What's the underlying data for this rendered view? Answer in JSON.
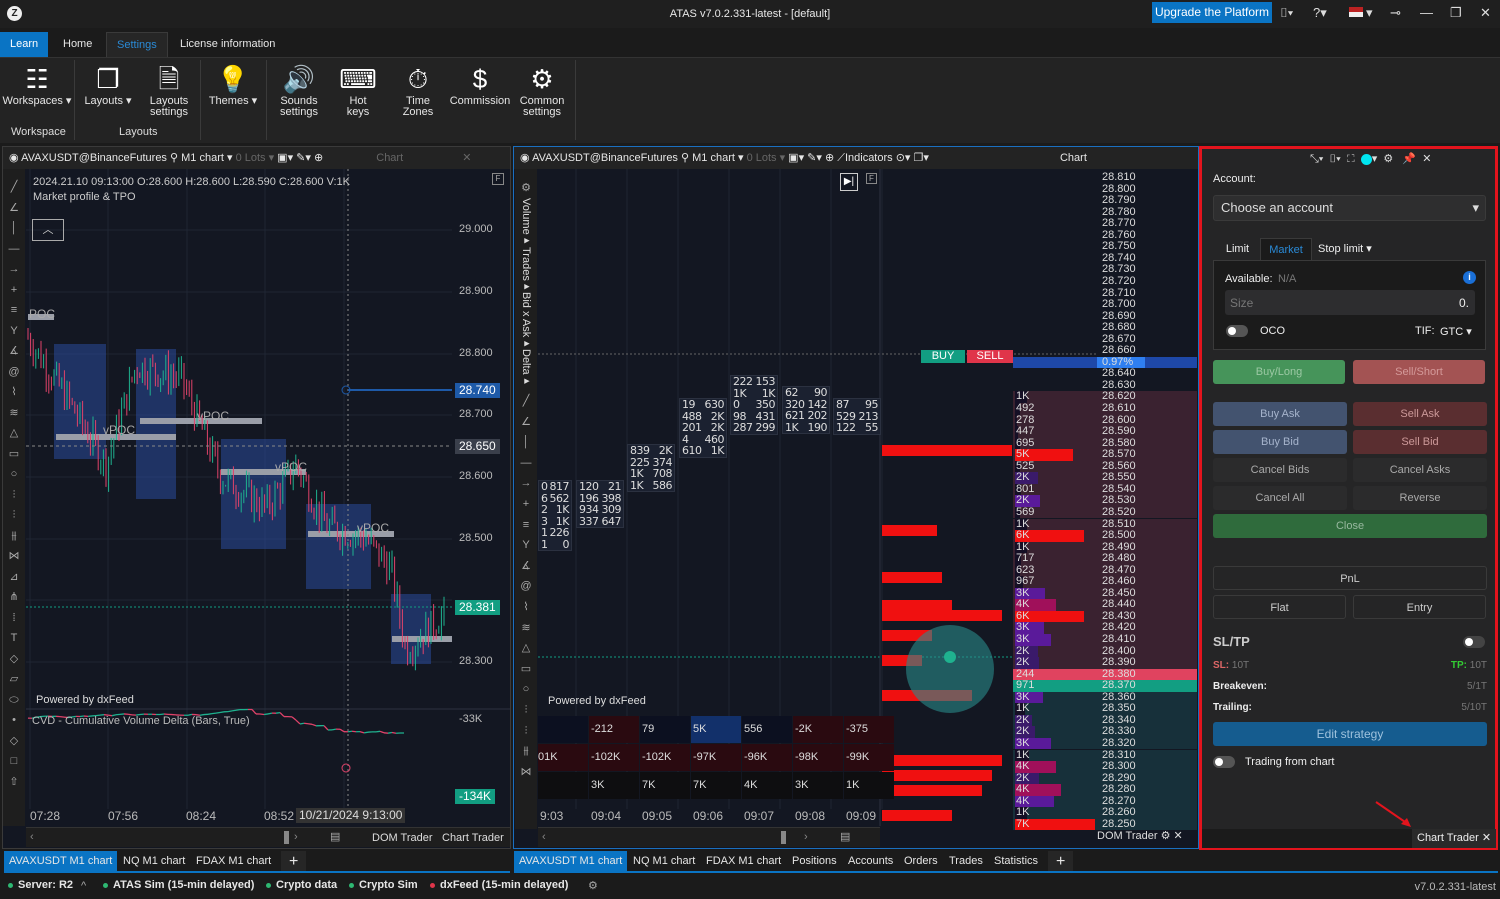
{
  "app": {
    "title": "ATAS v7.0.2.331-latest - [default]",
    "upgrade_label": "Upgrade the Platform"
  },
  "ribbon": {
    "tabs": [
      {
        "label": "Learn"
      },
      {
        "label": "Home"
      },
      {
        "label": "Settings"
      },
      {
        "label": "License information"
      }
    ],
    "buttons": [
      {
        "label": "Workspaces ▾",
        "icon": "workspaces-icon"
      },
      {
        "label": "Layouts ▾",
        "icon": "layouts-icon"
      },
      {
        "label": "Layouts settings",
        "icon": "layouts-settings-icon"
      },
      {
        "label": "Themes ▾",
        "icon": "lightbulb-icon"
      },
      {
        "label": "Sounds settings",
        "icon": "speaker-icon"
      },
      {
        "label": "Hot keys",
        "icon": "keyboard-icon"
      },
      {
        "label": "Time Zones",
        "icon": "stopwatch-icon"
      },
      {
        "label": "Commission",
        "icon": "dollar-cycle-icon"
      },
      {
        "label": "Common settings",
        "icon": "gear-icon"
      }
    ],
    "groups": [
      {
        "label": "Workspace"
      },
      {
        "label": "Layouts"
      }
    ]
  },
  "left_chart": {
    "instrument": "AVAXUSDT@BinanceFutures",
    "timeframe": "M1 chart",
    "lots": "0 Lots",
    "panel_label": "Chart",
    "ohlc": "2024.21.10 09:13:00 O:28.600 H:28.600 L:28.590 C:28.600 V:1K",
    "indicator": "Market profile & TPO",
    "poc_labels": [
      "POC",
      "vPOC",
      "vPOC",
      "vPOC",
      "vPOC",
      "vPOC"
    ],
    "price_ticks": [
      "29.000",
      "28.900",
      "28.800",
      "28.700",
      "28.600",
      "28.500",
      "28.400",
      "28.300"
    ],
    "tags": {
      "line": "28.740",
      "crosshair": "28.650",
      "last": "28.381",
      "cvd": "-134K"
    },
    "powered": "Powered by dxFeed",
    "cvd_title": "CVD - Cumulative Volume Delta (Bars, True)",
    "cvd_tick": "-33K",
    "time_ticks": [
      "07:28",
      "07:56",
      "08:24",
      "08:52"
    ],
    "crosshair_time": "10/21/2024 9:13:00",
    "dom_trader": "DOM Trader",
    "chart_trader": "Chart Trader"
  },
  "right_chart": {
    "instrument": "AVAXUSDT@BinanceFutures",
    "timeframe": "M1 chart",
    "lots": "0 Lots",
    "indicators": "Indicators",
    "panel_label": "Chart",
    "side_labels": [
      "Volume",
      "Trades",
      "Bid x Ask",
      "Delta"
    ],
    "buy": "BUY",
    "sell": "SELL",
    "powered": "Powered by dxFeed",
    "clusters": [
      [
        [
          "0",
          "817"
        ],
        [
          "6",
          "562"
        ],
        [
          "2",
          "1K"
        ],
        [
          "3",
          "1K"
        ],
        [
          "1",
          "226"
        ],
        [
          "1",
          "0"
        ]
      ],
      [
        [
          "120",
          "21"
        ],
        [
          "196",
          "398"
        ],
        [
          "934",
          "309"
        ],
        [
          "337",
          "647"
        ]
      ],
      [
        [
          "839",
          "2K"
        ],
        [
          "225",
          "374"
        ],
        [
          "1K",
          "708"
        ],
        [
          "1K",
          "586"
        ]
      ],
      [
        [
          "19",
          "630"
        ],
        [
          "488",
          "2K"
        ],
        [
          "201",
          "2K"
        ],
        [
          "4",
          "460"
        ],
        [
          "610",
          "1K"
        ]
      ],
      [
        [
          "222",
          "153"
        ],
        [
          "1K",
          "1K"
        ],
        [
          "0",
          "350"
        ],
        [
          "98",
          "431"
        ],
        [
          "287",
          "299"
        ]
      ],
      [
        [
          "62",
          "90"
        ],
        [
          "320",
          "142"
        ],
        [
          "621",
          "202"
        ],
        [
          "1K",
          "190"
        ]
      ],
      [
        [
          "87",
          "95"
        ],
        [
          "529",
          "213"
        ],
        [
          "122",
          "55"
        ]
      ]
    ],
    "stats_table": [
      [
        "",
        "-212",
        "79",
        "5K",
        "556",
        "-2K",
        "-375"
      ],
      [
        "01K",
        "-102K",
        "-102K",
        "-97K",
        "-96K",
        "-98K",
        "-99K"
      ],
      [
        "",
        "3K",
        "7K",
        "7K",
        "4K",
        "3K",
        "1K"
      ]
    ],
    "time_ticks": [
      "9:03",
      "09:04",
      "09:05",
      "09:06",
      "09:07",
      "09:08",
      "09:09"
    ],
    "ladder": [
      {
        "p": "28.810"
      },
      {
        "p": "28.800"
      },
      {
        "p": "28.790"
      },
      {
        "p": "28.780"
      },
      {
        "p": "28.770"
      },
      {
        "p": "28.760"
      },
      {
        "p": "28.750"
      },
      {
        "p": "28.740"
      },
      {
        "p": "28.730"
      },
      {
        "p": "28.720"
      },
      {
        "p": "28.710"
      },
      {
        "p": "28.700"
      },
      {
        "p": "28.690"
      },
      {
        "p": "28.680"
      },
      {
        "p": "28.670"
      },
      {
        "p": "28.660"
      },
      {
        "p": "0.97%",
        "hl": "current"
      },
      {
        "p": "28.640"
      },
      {
        "p": "28.630"
      },
      {
        "p": "28.620",
        "v": "1K",
        "k": 1
      },
      {
        "p": "28.610",
        "v": "492",
        "k": 0.4
      },
      {
        "p": "28.600",
        "v": "278",
        "k": 0.2
      },
      {
        "p": "28.590",
        "v": "447",
        "k": 0.3
      },
      {
        "p": "28.580",
        "v": "695",
        "k": 0.4
      },
      {
        "p": "28.570",
        "v": "5K",
        "k": 5
      },
      {
        "p": "28.560",
        "v": "525",
        "k": 0.4
      },
      {
        "p": "28.550",
        "v": "2K",
        "k": 2
      },
      {
        "p": "28.540",
        "v": "801",
        "k": 0.5
      },
      {
        "p": "28.530",
        "v": "2K",
        "k": 2.2
      },
      {
        "p": "28.520",
        "v": "569",
        "k": 0.4
      },
      {
        "p": "28.510",
        "v": "1K",
        "k": 1
      },
      {
        "p": "28.500",
        "v": "6K",
        "k": 6
      },
      {
        "p": "28.490",
        "v": "1K",
        "k": 1
      },
      {
        "p": "28.480",
        "v": "717",
        "k": 0.5
      },
      {
        "p": "28.470",
        "v": "623",
        "k": 0.4
      },
      {
        "p": "28.460",
        "v": "967",
        "k": 0.7
      },
      {
        "p": "28.450",
        "v": "3K",
        "k": 2.6
      },
      {
        "p": "28.440",
        "v": "4K",
        "k": 3.6
      },
      {
        "p": "28.430",
        "v": "6K",
        "k": 6
      },
      {
        "p": "28.420",
        "v": "3K",
        "k": 2.5
      },
      {
        "p": "28.410",
        "v": "3K",
        "k": 3.1
      },
      {
        "p": "28.400",
        "v": "2K",
        "k": 2
      },
      {
        "p": "28.390",
        "v": "2K",
        "k": 2.1
      },
      {
        "p": "28.380",
        "v": "244",
        "hl": "ask"
      },
      {
        "p": "28.370",
        "v": "971",
        "hl": "bid"
      },
      {
        "p": "28.360",
        "v": "3K",
        "k": 2.4
      },
      {
        "p": "28.350",
        "v": "1K",
        "k": 0.9
      },
      {
        "p": "28.340",
        "v": "2K",
        "k": 1.5
      },
      {
        "p": "28.330",
        "v": "2K",
        "k": 1.7
      },
      {
        "p": "28.320",
        "v": "3K",
        "k": 3.1
      },
      {
        "p": "28.310",
        "v": "1K",
        "k": 1.2
      },
      {
        "p": "28.300",
        "v": "4K",
        "k": 3.6
      },
      {
        "p": "28.290",
        "v": "2K",
        "k": 2.1
      },
      {
        "p": "28.280",
        "v": "4K",
        "k": 4
      },
      {
        "p": "28.270",
        "v": "4K",
        "k": 3.4
      },
      {
        "p": "28.260",
        "v": "1K",
        "k": 1
      },
      {
        "p": "28.250",
        "v": "7K",
        "k": 7
      }
    ],
    "dom_trader": "DOM Trader"
  },
  "chart_trader": {
    "account_label": "Account:",
    "account_placeholder": "Choose an account",
    "order_tabs": [
      "Limit",
      "Market",
      "Stop limit ▾"
    ],
    "available_label": "Available:",
    "available_value": "N/A",
    "size_placeholder": "Size",
    "size_value": "0.",
    "oco": "OCO",
    "tif_label": "TIF:",
    "tif_value": "GTC",
    "buy_long": "Buy/Long",
    "sell_short": "Sell/Short",
    "buy_ask": "Buy Ask",
    "sell_ask": "Sell Ask",
    "buy_bid": "Buy Bid",
    "sell_bid": "Sell Bid",
    "cancel_bids": "Cancel Bids",
    "cancel_asks": "Cancel Asks",
    "cancel_all": "Cancel All",
    "reverse": "Reverse",
    "close": "Close",
    "pnl": "PnL",
    "flat": "Flat",
    "entry": "Entry",
    "sltp": "SL/TP",
    "sl_label": "SL:",
    "sl_value": "10T",
    "tp_label": "TP:",
    "tp_value": "10T",
    "breakeven_label": "Breakeven:",
    "breakeven_value": "5/1T",
    "trailing_label": "Trailing:",
    "trailing_value": "5/10T",
    "edit_strategy": "Edit strategy",
    "trading_from_chart": "Trading from chart",
    "tab_label": "Chart Trader"
  },
  "bottom_tabs_left": [
    "AVAXUSDT M1 chart",
    "NQ M1 chart",
    "FDAX M1 chart"
  ],
  "bottom_tabs_right": [
    "AVAXUSDT M1 chart",
    "NQ M1 chart",
    "FDAX M1 chart",
    "Positions",
    "Accounts",
    "Orders",
    "Trades",
    "Statistics"
  ],
  "status": [
    {
      "label": "Server: R2",
      "color": "#2eb872"
    },
    {
      "label": "ATAS Sim (15-min delayed)",
      "color": "#2eb872"
    },
    {
      "label": "Crypto data",
      "color": "#2eb872"
    },
    {
      "label": "Crypto Sim",
      "color": "#2eb872"
    },
    {
      "label": "dxFeed (15-min delayed)",
      "color": "#e0354a"
    }
  ],
  "version": "v7.0.2.331-latest",
  "colors": {
    "accent": "#0a74c4",
    "bull": "#1fb28f",
    "bear": "#e0436a",
    "highlight_border": "#e3141d"
  }
}
